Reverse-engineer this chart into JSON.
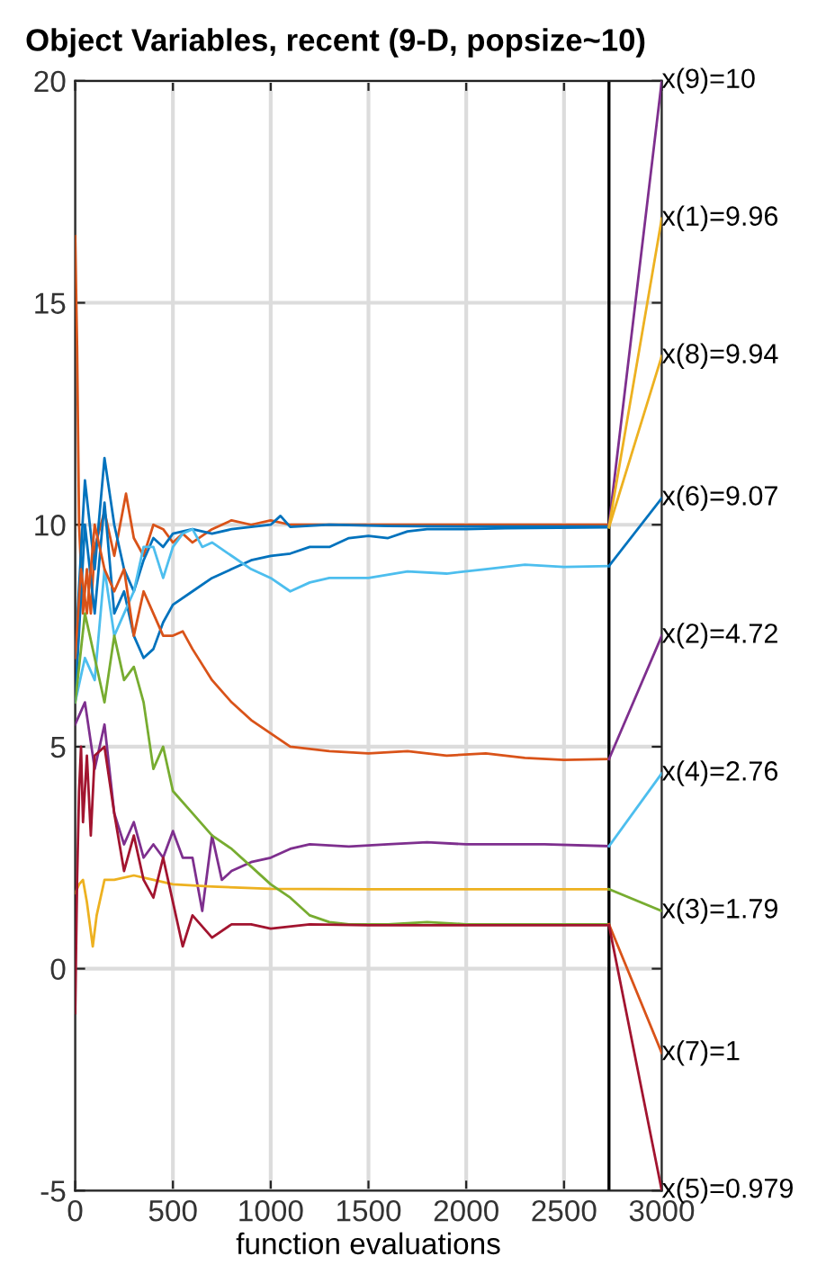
{
  "chart_data": {
    "type": "line",
    "title": "Object Variables, recent (9-D, popsize~10)",
    "xlabel": "function evaluations",
    "xlim": [
      0,
      3000
    ],
    "ylim": [
      -5,
      20
    ],
    "xticks": [
      0,
      500,
      1000,
      1500,
      2000,
      2500,
      3000
    ],
    "yticks": [
      -5,
      0,
      5,
      10,
      15,
      20
    ],
    "grid": true,
    "ref_lines": [
      {
        "axis": "x",
        "value": 2730,
        "color": "#000000"
      }
    ],
    "series": [
      {
        "color": "#d95319",
        "x": [
          0,
          10,
          20,
          40,
          60,
          80,
          100,
          150,
          200,
          260,
          300,
          350,
          400,
          450,
          500,
          550,
          600,
          700,
          800,
          900,
          1000,
          1100,
          1300,
          1600,
          2000,
          2400,
          2730
        ],
        "values": [
          16.5,
          14,
          10,
          8,
          9,
          8,
          9.5,
          10.3,
          9.3,
          10.7,
          9.7,
          9.3,
          10,
          9.9,
          9.6,
          9.8,
          9.6,
          9.9,
          10.1,
          10,
          10.1,
          10,
          10,
          10,
          10,
          10,
          10
        ]
      },
      {
        "color": "#0072bd",
        "x": [
          0,
          50,
          100,
          150,
          200,
          250,
          300,
          350,
          400,
          450,
          500,
          600,
          700,
          800,
          900,
          1000,
          1050,
          1100,
          1300,
          1600,
          2000,
          2730
        ],
        "values": [
          7,
          11,
          9,
          11.5,
          10,
          9,
          8.5,
          9.2,
          9.7,
          9.5,
          9.8,
          9.9,
          9.8,
          9.9,
          9.95,
          10,
          10.2,
          9.95,
          10,
          9.97,
          9.96,
          9.96
        ]
      },
      {
        "color": "#0072bd",
        "x": [
          0,
          50,
          100,
          150,
          200,
          250,
          300,
          350,
          400,
          450,
          500,
          600,
          700,
          800,
          900,
          1000,
          1100,
          1200,
          1300,
          1400,
          1500,
          1600,
          1700,
          1800,
          2000,
          2200,
          2730
        ],
        "values": [
          6,
          10,
          8,
          10.5,
          8,
          8.5,
          7.5,
          7,
          7.2,
          7.8,
          8.2,
          8.5,
          8.8,
          9.0,
          9.2,
          9.3,
          9.35,
          9.5,
          9.5,
          9.7,
          9.75,
          9.7,
          9.85,
          9.9,
          9.9,
          9.92,
          9.94
        ]
      },
      {
        "color": "#4dbeee",
        "x": [
          0,
          50,
          100,
          150,
          200,
          250,
          300,
          350,
          400,
          450,
          500,
          550,
          600,
          650,
          700,
          800,
          900,
          1000,
          1100,
          1200,
          1300,
          1500,
          1700,
          1900,
          2100,
          2300,
          2500,
          2730
        ],
        "values": [
          6,
          7,
          6.5,
          9,
          7.5,
          8,
          8.5,
          9.5,
          9.5,
          8.8,
          9.5,
          9.8,
          9.9,
          9.5,
          9.6,
          9.3,
          9.0,
          8.8,
          8.5,
          8.7,
          8.8,
          8.8,
          8.95,
          8.9,
          9.0,
          9.1,
          9.05,
          9.07
        ]
      },
      {
        "color": "#d95319",
        "x": [
          0,
          30,
          60,
          100,
          150,
          200,
          250,
          300,
          350,
          400,
          450,
          500,
          550,
          600,
          700,
          800,
          900,
          1000,
          1100,
          1300,
          1500,
          1700,
          1900,
          2100,
          2300,
          2500,
          2730
        ],
        "values": [
          7,
          9,
          8,
          10,
          9,
          8.5,
          9,
          7.5,
          8.5,
          8,
          7.5,
          7.5,
          7.6,
          7.2,
          6.5,
          6,
          5.6,
          5.3,
          5,
          4.9,
          4.85,
          4.9,
          4.8,
          4.85,
          4.75,
          4.7,
          4.72
        ]
      },
      {
        "color": "#7e2f8e",
        "x": [
          0,
          50,
          100,
          150,
          200,
          250,
          300,
          350,
          400,
          450,
          500,
          550,
          600,
          650,
          700,
          750,
          800,
          900,
          1000,
          1100,
          1200,
          1400,
          1600,
          1800,
          2000,
          2400,
          2730
        ],
        "values": [
          5.5,
          6,
          4.5,
          5.5,
          3.5,
          2.8,
          3.3,
          2.5,
          2.8,
          2.5,
          3.1,
          2.5,
          2.5,
          1.3,
          3.0,
          2.0,
          2.2,
          2.4,
          2.5,
          2.7,
          2.8,
          2.75,
          2.8,
          2.85,
          2.8,
          2.8,
          2.76
        ]
      },
      {
        "color": "#edb120",
        "x": [
          0,
          20,
          40,
          60,
          90,
          110,
          150,
          200,
          300,
          400,
          500,
          700,
          1000,
          1500,
          2730
        ],
        "values": [
          1.7,
          1.9,
          2.0,
          1.5,
          0.5,
          1.2,
          2.0,
          2.0,
          2.1,
          2.0,
          1.9,
          1.85,
          1.8,
          1.79,
          1.79
        ]
      },
      {
        "color": "#77ac30",
        "x": [
          0,
          50,
          100,
          150,
          200,
          250,
          300,
          350,
          400,
          450,
          500,
          600,
          700,
          800,
          900,
          1000,
          1100,
          1200,
          1300,
          1400,
          1600,
          1800,
          2000,
          2730
        ],
        "values": [
          6,
          8,
          7,
          6,
          7.5,
          6.5,
          6.8,
          6,
          4.5,
          5,
          4,
          3.5,
          3,
          2.7,
          2.3,
          1.9,
          1.6,
          1.2,
          1.05,
          1.0,
          1.0,
          1.05,
          1.0,
          1.0
        ]
      },
      {
        "color": "#a2142f",
        "x": [
          0,
          10,
          20,
          30,
          40,
          60,
          80,
          100,
          150,
          200,
          250,
          300,
          350,
          400,
          450,
          500,
          550,
          600,
          700,
          800,
          900,
          1000,
          1200,
          1500,
          2000,
          2730
        ],
        "values": [
          -1,
          2,
          4,
          5,
          3.3,
          4.8,
          3.0,
          4.8,
          5.0,
          3.5,
          2.2,
          3.0,
          2.0,
          1.6,
          2.5,
          1.5,
          0.5,
          1.2,
          0.7,
          1.0,
          1.0,
          0.9,
          1.0,
          0.98,
          0.98,
          0.98
        ]
      },
      {
        "name": "x(9)=10",
        "color": "#7e2f8e",
        "x": [
          2730,
          3000
        ],
        "values": [
          10,
          20
        ]
      },
      {
        "name": "x(1)=9.96",
        "color": "#edb120",
        "x": [
          2730,
          3000
        ],
        "values": [
          9.96,
          16.9
        ]
      },
      {
        "name": "x(8)=9.94",
        "color": "#edb120",
        "x": [
          2730,
          3000
        ],
        "values": [
          9.94,
          13.8
        ]
      },
      {
        "name": "x(6)=9.07",
        "color": "#0072bd",
        "x": [
          2730,
          3000
        ],
        "values": [
          9.07,
          10.6
        ]
      },
      {
        "name": "x(2)=4.72",
        "color": "#7e2f8e",
        "x": [
          2730,
          3000
        ],
        "values": [
          4.72,
          7.5
        ]
      },
      {
        "name": "x(4)=2.76",
        "color": "#4dbeee",
        "x": [
          2730,
          3000
        ],
        "values": [
          2.76,
          4.4
        ]
      },
      {
        "name": "x(3)=1.79",
        "color": "#77ac30",
        "x": [
          2730,
          3000
        ],
        "values": [
          1.79,
          1.3
        ]
      },
      {
        "name": "x(7)=1",
        "color": "#d95319",
        "x": [
          2730,
          3000
        ],
        "values": [
          1,
          -1.9
        ]
      },
      {
        "name": "x(5)=0.979",
        "color": "#a2142f",
        "x": [
          2730,
          3000
        ],
        "values": [
          0.98,
          -5
        ]
      }
    ]
  }
}
